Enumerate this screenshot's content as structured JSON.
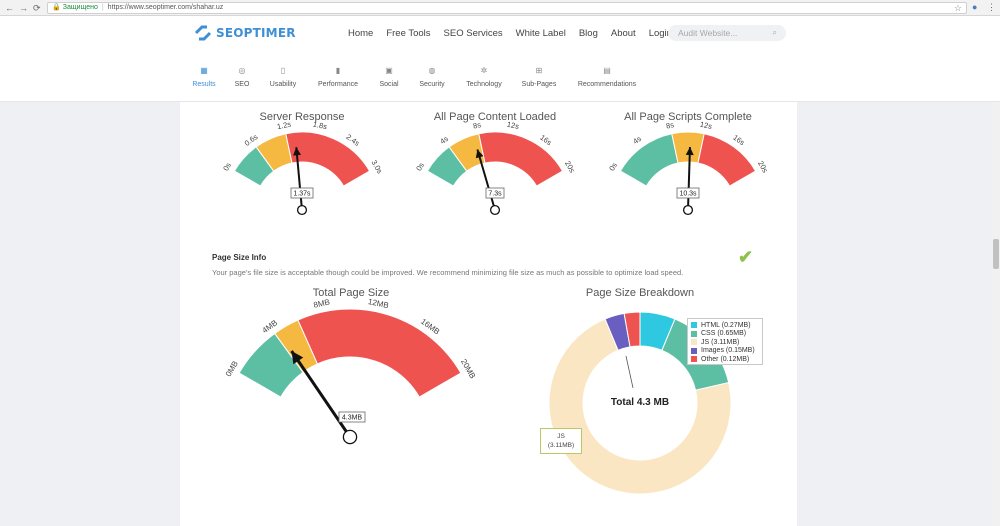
{
  "browser": {
    "back": "←",
    "forward": "→",
    "reload": "⟳",
    "secure_label": "Защищено",
    "url": "https://www.seoptimer.com/shahar.uz"
  },
  "header": {
    "logo": "SEOPTIMER",
    "nav": [
      "Home",
      "Free Tools",
      "SEO Services",
      "White Label",
      "Blog",
      "About",
      "Login"
    ],
    "search_placeholder": "Audit Website...",
    "subnav": [
      {
        "label": "Results",
        "icon": "results-icon",
        "active": true
      },
      {
        "label": "SEO",
        "icon": "seo-icon"
      },
      {
        "label": "Usability",
        "icon": "usability-icon"
      },
      {
        "label": "Performance",
        "icon": "performance-icon"
      },
      {
        "label": "Social",
        "icon": "social-icon"
      },
      {
        "label": "Security",
        "icon": "security-icon"
      },
      {
        "label": "Technology",
        "icon": "technology-icon"
      },
      {
        "label": "Sub-Pages",
        "icon": "subpages-icon"
      },
      {
        "label": "Recommendations",
        "icon": "recommendations-icon"
      }
    ]
  },
  "gauges": [
    {
      "title": "Server Response",
      "ticks": [
        "0s",
        "0.6s",
        "1.2s",
        "1.8s",
        "2.4s",
        "3.0s"
      ],
      "max": 3.0,
      "green_end": 0.6,
      "yellow_end": 1.2,
      "value": 1.37,
      "value_label": "1.37s"
    },
    {
      "title": "All Page Content Loaded",
      "ticks": [
        "0s",
        "4s",
        "8s",
        "12s",
        "16s",
        "20s"
      ],
      "max": 20,
      "green_end": 4,
      "yellow_end": 8,
      "value": 7.3,
      "value_label": "7.3s"
    },
    {
      "title": "All Page Scripts Complete",
      "ticks": [
        "0s",
        "4s",
        "8s",
        "12s",
        "16s",
        "20s"
      ],
      "max": 20,
      "green_end": 8,
      "yellow_end": 12,
      "value": 10.3,
      "value_label": "10.3s"
    },
    {
      "title": "Total Page Size",
      "ticks": [
        "0MB",
        "4MB",
        "8MB",
        "12MB",
        "16MB",
        "20MB"
      ],
      "max": 20,
      "green_end": 4,
      "yellow_end": 6,
      "value": 4.3,
      "value_label": "4.3MB"
    }
  ],
  "colors": {
    "green": "#5cbfa3",
    "yellow": "#f5b942",
    "red": "#ef5350"
  },
  "page_size_info": {
    "title": "Page Size Info",
    "description": "Your page's file size is acceptable though could be improved. We recommend minimizing file size as much as possible to optimize load speed."
  },
  "breakdown": {
    "title": "Page Size Breakdown",
    "center_label": "Total 4.3 MB",
    "legend": [
      {
        "label": "HTML (0.27MB)",
        "color": "#2ec8e0",
        "value": 0.27
      },
      {
        "label": "CSS (0.65MB)",
        "color": "#5cbfa3",
        "value": 0.65
      },
      {
        "label": "JS (3.11MB)",
        "color": "#fbe6c4",
        "value": 3.11
      },
      {
        "label": "Images (0.15MB)",
        "color": "#6a5fc1",
        "value": 0.15
      },
      {
        "label": "Other (0.12MB)",
        "color": "#ef5350",
        "value": 0.12
      }
    ],
    "tooltip_name": "JS",
    "tooltip_value": "(3.11MB)"
  }
}
